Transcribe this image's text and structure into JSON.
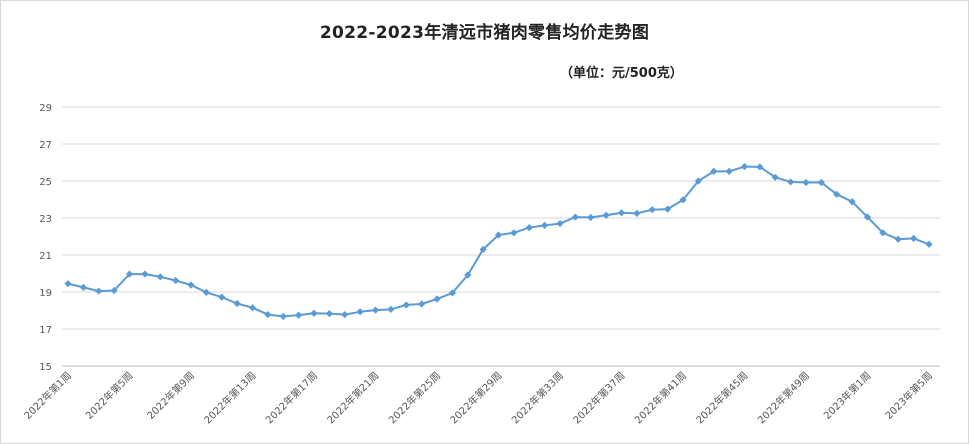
{
  "chart_data": {
    "type": "line",
    "title": "2022-2023年清远市猪肉零售均价走势图",
    "subtitle": "（单位：元/500克）",
    "xlabel": "",
    "ylabel": "",
    "ylim": [
      15,
      29
    ],
    "yticks": [
      15,
      17,
      19,
      21,
      23,
      25,
      27,
      29
    ],
    "grid": true,
    "legend": "none",
    "line_color": "#5b9bd5",
    "x_tick_labels": [
      "2022年第1周",
      "2022年第5周",
      "2022年第9周",
      "2022年第13周",
      "2022年第17周",
      "2022年第21周",
      "2022年第25周",
      "2022年第29周",
      "2022年第33周",
      "2022年第37周",
      "2022年第41周",
      "2022年第45周",
      "2022年第49周",
      "2023年第1周",
      "2023年第5周"
    ],
    "values": [
      19.45,
      19.25,
      19.05,
      19.08,
      19.97,
      19.97,
      19.82,
      19.62,
      19.38,
      18.98,
      18.72,
      18.38,
      18.15,
      17.78,
      17.68,
      17.75,
      17.85,
      17.83,
      17.78,
      17.93,
      18.02,
      18.06,
      18.3,
      18.35,
      18.62,
      18.95,
      19.92,
      21.3,
      22.08,
      22.2,
      22.48,
      22.6,
      22.7,
      23.05,
      23.03,
      23.15,
      23.28,
      23.25,
      23.45,
      23.48,
      23.98,
      25.0,
      25.52,
      25.52,
      25.78,
      25.76,
      25.2,
      24.95,
      24.92,
      24.92,
      24.28,
      23.88,
      23.05,
      22.2,
      21.85,
      21.9,
      21.58
    ]
  }
}
